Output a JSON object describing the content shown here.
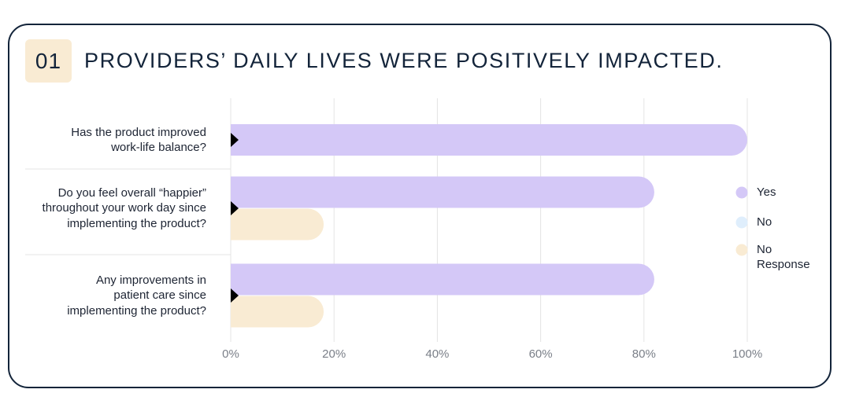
{
  "chart_data": {
    "type": "bar",
    "orientation": "horizontal",
    "badge": "01",
    "title": "PROVIDERS’ DAILY LIVES WERE POSITIVELY IMPACTED.",
    "categories": [
      "Has the product improved\nwork-life balance?",
      "Do you feel overall “happier”\nthroughout your work day since\nimplementing the product?",
      "Any improvements in\npatient care since\nimplementing the product?"
    ],
    "series": [
      {
        "name": "Yes",
        "color": "#d4c8f7",
        "values": [
          100,
          82,
          82
        ]
      },
      {
        "name": "No",
        "color": "#dfeefc",
        "values": [
          0,
          0,
          0
        ]
      },
      {
        "name": "No Response",
        "color": "#f9ebd3",
        "values": [
          0,
          18,
          18
        ]
      }
    ],
    "xlim": [
      0,
      100
    ],
    "xticks": [
      {
        "value": 0,
        "label": "0%"
      },
      {
        "value": 20,
        "label": "20%"
      },
      {
        "value": 40,
        "label": "40%"
      },
      {
        "value": 60,
        "label": "60%"
      },
      {
        "value": 80,
        "label": "80%"
      },
      {
        "value": 100,
        "label": "100%"
      }
    ],
    "grid": true,
    "legend": "right"
  }
}
